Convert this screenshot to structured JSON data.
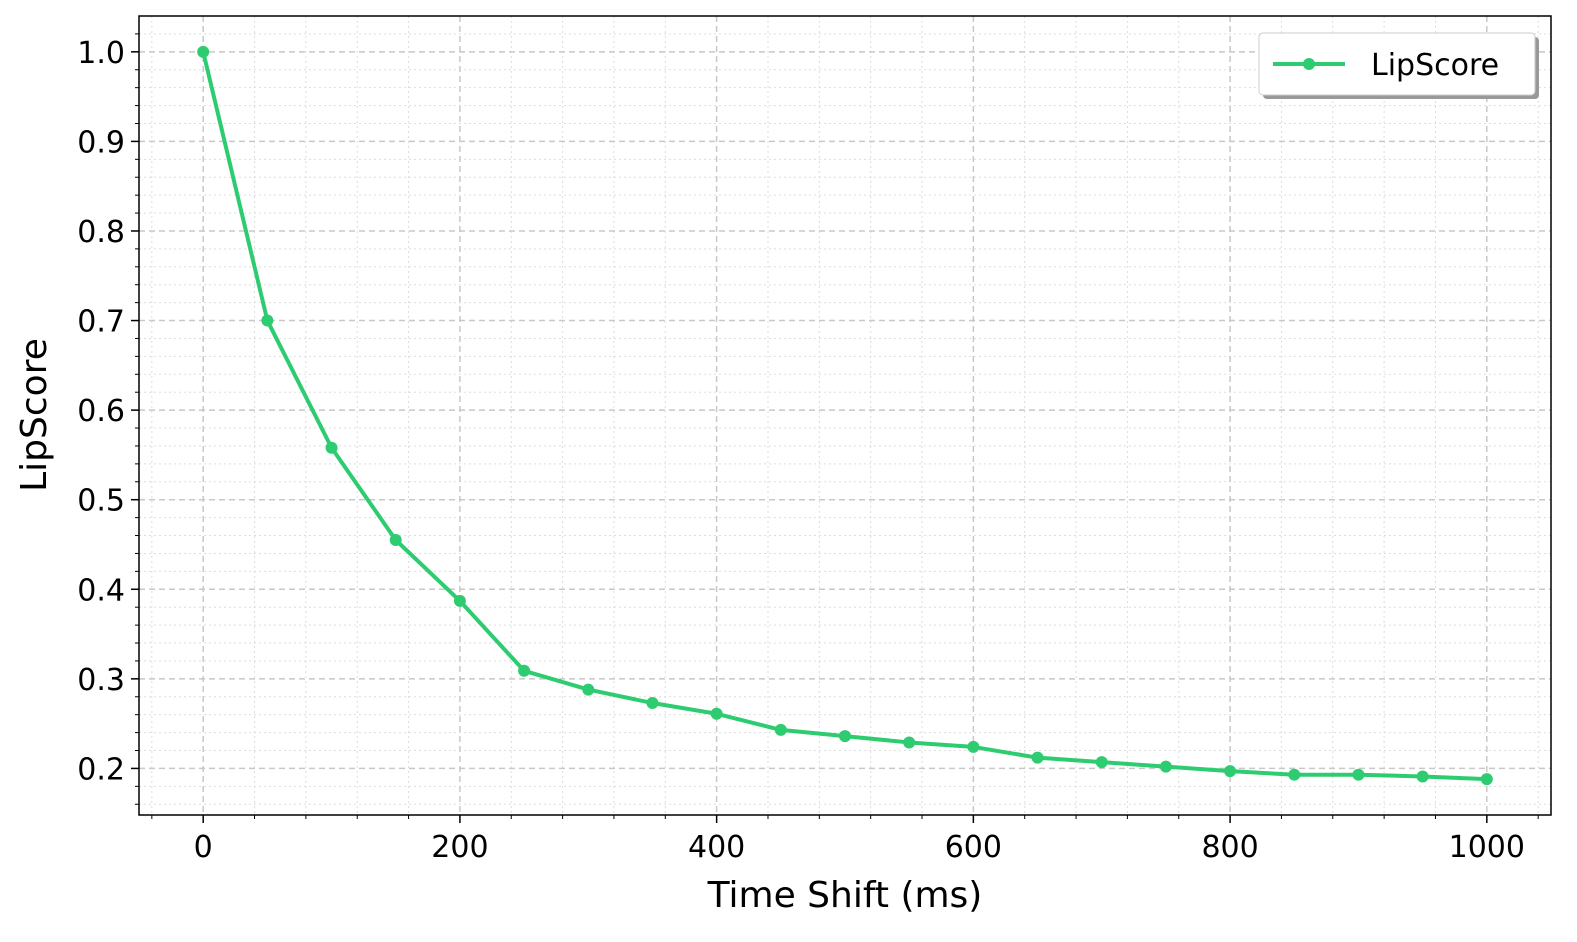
{
  "chart_data": {
    "type": "line",
    "xlabel": "Time Shift (ms)",
    "ylabel": "LipScore",
    "x": [
      0,
      50,
      100,
      150,
      200,
      250,
      300,
      350,
      400,
      450,
      500,
      550,
      600,
      650,
      700,
      750,
      800,
      850,
      900,
      950,
      1000
    ],
    "series": [
      {
        "name": "LipScore",
        "color": "#2ecc71",
        "values": [
          1.0,
          0.7,
          0.558,
          0.455,
          0.387,
          0.309,
          0.288,
          0.273,
          0.261,
          0.243,
          0.236,
          0.229,
          0.224,
          0.212,
          0.207,
          0.202,
          0.197,
          0.193,
          0.193,
          0.191,
          0.188
        ]
      }
    ],
    "xlim": [
      -50,
      1050
    ],
    "ylim": [
      0.148,
      1.04
    ],
    "xticks": [
      0,
      200,
      400,
      600,
      800,
      1000
    ],
    "yticks": [
      {
        "value": 0.2,
        "label": "0.2"
      },
      {
        "value": 0.3,
        "label": "0.3"
      },
      {
        "value": 0.4,
        "label": "0.4"
      },
      {
        "value": 0.5,
        "label": "0.5"
      },
      {
        "value": 0.6,
        "label": "0.6"
      },
      {
        "value": 0.7,
        "label": "0.7"
      },
      {
        "value": 0.8,
        "label": "0.8"
      },
      {
        "value": 0.9,
        "label": "0.9"
      },
      {
        "value": 1.0,
        "label": "1.0"
      }
    ],
    "xminorticks": [
      -40,
      40,
      80,
      120,
      160,
      240,
      280,
      320,
      360,
      440,
      480,
      520,
      560,
      640,
      680,
      720,
      760,
      840,
      880,
      920,
      960,
      1040
    ],
    "yminorticks": [
      0.16,
      0.18,
      0.22,
      0.24,
      0.26,
      0.28,
      0.32,
      0.34,
      0.36,
      0.38,
      0.42,
      0.44,
      0.46,
      0.48,
      0.52,
      0.54,
      0.56,
      0.58,
      0.62,
      0.64,
      0.66,
      0.68,
      0.72,
      0.74,
      0.76,
      0.78,
      0.82,
      0.84,
      0.86,
      0.88,
      0.92,
      0.94,
      0.96,
      0.98,
      1.02
    ],
    "grid": true,
    "legend": "upper right"
  }
}
